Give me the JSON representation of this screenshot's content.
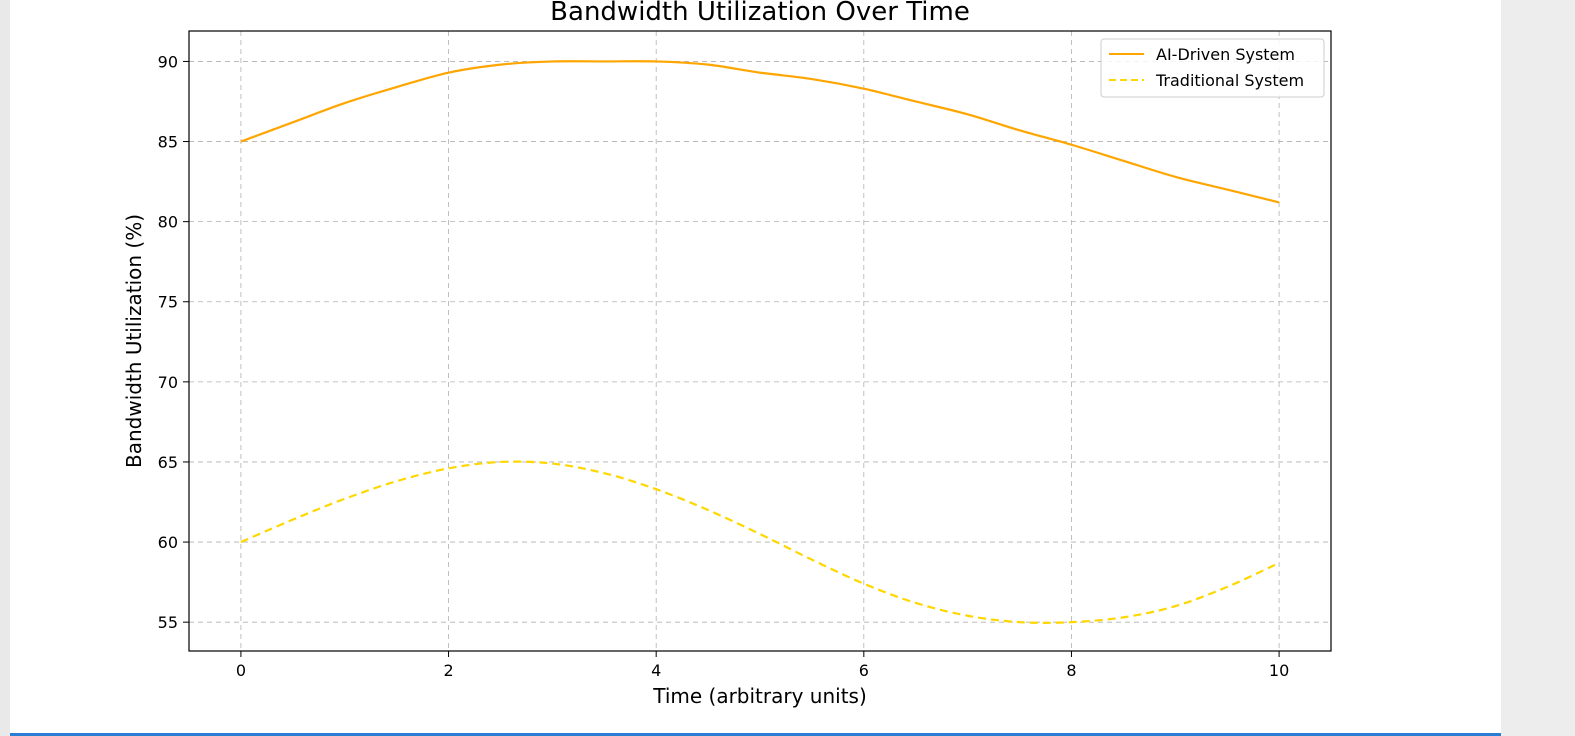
{
  "chart_data": {
    "type": "line",
    "title": "Bandwidth Utilization Over Time",
    "xlabel": "Time (arbitrary units)",
    "ylabel": "Bandwidth Utilization (%)",
    "xlim": [
      -0.5,
      10.5
    ],
    "ylim": [
      53.2,
      91.9
    ],
    "xticks": [
      0,
      2,
      4,
      6,
      8,
      10
    ],
    "yticks": [
      55,
      60,
      65,
      70,
      75,
      80,
      85,
      90
    ],
    "grid": true,
    "legend_position": "top-right",
    "x": [
      0,
      0.5,
      1,
      1.5,
      2,
      2.5,
      3,
      3.5,
      4,
      4.5,
      5,
      5.5,
      6,
      6.5,
      7,
      7.5,
      8,
      8.5,
      9,
      9.5,
      10
    ],
    "series": [
      {
        "name": "AI-Driven System",
        "color": "#FFA500",
        "style": "solid",
        "values": [
          85.0,
          86.2,
          87.4,
          88.4,
          89.3,
          89.8,
          90.0,
          90.0,
          90.0,
          89.8,
          89.3,
          88.9,
          88.3,
          87.5,
          86.7,
          85.7,
          84.8,
          83.8,
          82.8,
          82.0,
          81.2
        ]
      },
      {
        "name": "Traditional System",
        "color": "#FFD700",
        "style": "dashed",
        "values": [
          60.0,
          61.4,
          62.7,
          63.8,
          64.6,
          65.0,
          64.9,
          64.3,
          63.3,
          62.0,
          60.5,
          58.9,
          57.4,
          56.2,
          55.4,
          55.0,
          55.0,
          55.3,
          56.0,
          57.2,
          58.7
        ]
      }
    ]
  }
}
